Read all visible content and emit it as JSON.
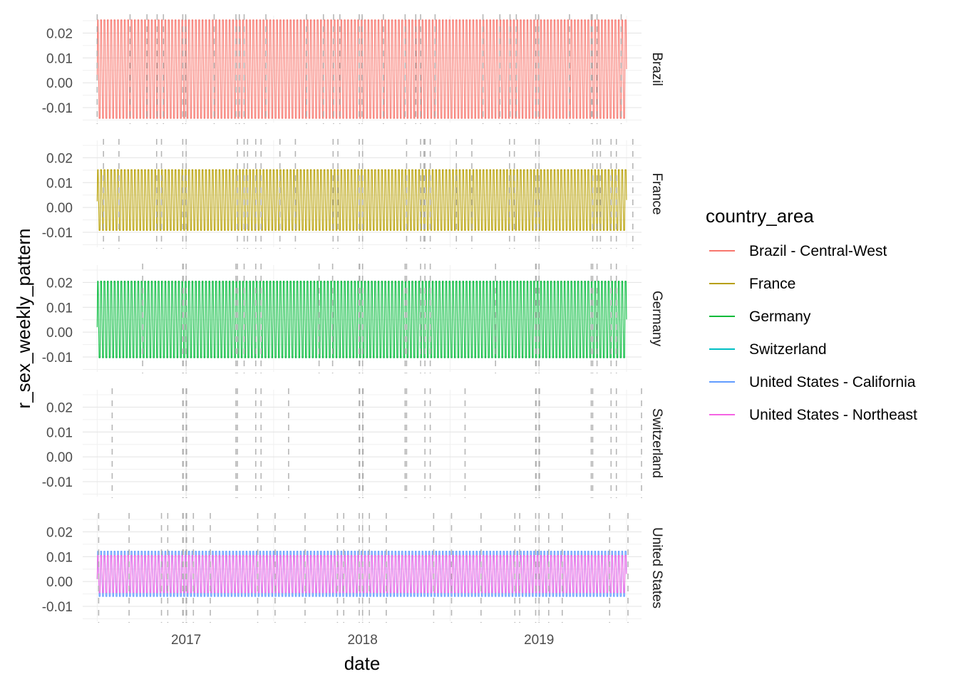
{
  "chart_data": {
    "type": "line",
    "xlabel": "date",
    "ylabel": "r_sex_weekly_pattern",
    "x_ticks": [
      "2017",
      "2018",
      "2019"
    ],
    "x_tick_dates": [
      "2017-01-01",
      "2018-01-01",
      "2019-01-01"
    ],
    "xlim": [
      "2016-06-01",
      "2019-08-01"
    ],
    "date_range": [
      "2016-07-01",
      "2019-07-01"
    ],
    "ylim": [
      -0.016,
      0.027
    ],
    "y_ticks": [
      -0.01,
      0.0,
      0.01,
      0.02
    ],
    "y_tick_labels": [
      "-0.01",
      "0.00",
      "0.01",
      "0.02"
    ],
    "facet_strip_position": "right",
    "grid": true,
    "weekly_oscillation": true,
    "legend": {
      "title": "country_area",
      "position": "right",
      "entries": [
        {
          "name": "Brazil - Central-West",
          "color": "#F8766D"
        },
        {
          "name": "France",
          "color": "#B79F00"
        },
        {
          "name": "Germany",
          "color": "#00BA38"
        },
        {
          "name": "Switzerland",
          "color": "#00BFC4"
        },
        {
          "name": "United States - California",
          "color": "#619CFF"
        },
        {
          "name": "United States - Northeast",
          "color": "#F564E3"
        }
      ]
    },
    "facets": [
      {
        "label": "Brazil",
        "series": [
          {
            "name": "Brazil - Central-West",
            "color": "#F8766D",
            "max": 0.0253,
            "min": -0.0143,
            "start": 0.001
          }
        ],
        "dashed_lines": [
          "2016-07-01",
          "2016-09-07",
          "2016-10-12",
          "2016-11-02",
          "2016-11-15",
          "2016-12-25",
          "2016-12-31",
          "2017-02-28",
          "2017-04-14",
          "2017-04-21",
          "2017-05-01",
          "2017-06-15",
          "2017-09-07",
          "2017-10-12",
          "2017-11-02",
          "2017-11-15",
          "2017-12-25",
          "2017-12-31",
          "2018-02-13",
          "2018-03-30",
          "2018-04-21",
          "2018-05-01",
          "2018-05-31",
          "2018-09-07",
          "2018-10-12",
          "2018-11-02",
          "2018-11-15",
          "2018-12-25",
          "2018-12-31",
          "2019-03-05",
          "2019-04-19",
          "2019-04-21",
          "2019-05-01",
          "2019-06-20"
        ]
      },
      {
        "label": "France",
        "series": [
          {
            "name": "France",
            "color": "#B79F00",
            "max": 0.0152,
            "min": -0.0092,
            "start": 0.0025
          }
        ],
        "dashed_lines": [
          "2016-05-16",
          "2016-07-14",
          "2016-08-15",
          "2016-11-01",
          "2016-11-11",
          "2016-12-25",
          "2017-01-01",
          "2017-04-17",
          "2017-05-01",
          "2017-05-08",
          "2017-05-25",
          "2017-06-05",
          "2017-07-14",
          "2017-08-15",
          "2017-11-01",
          "2017-11-11",
          "2017-12-25",
          "2018-01-01",
          "2018-04-02",
          "2018-05-01",
          "2018-05-08",
          "2018-05-10",
          "2018-05-21",
          "2018-07-14",
          "2018-08-15",
          "2018-11-01",
          "2018-11-11",
          "2018-12-25",
          "2019-01-01",
          "2019-04-22",
          "2019-05-01",
          "2019-05-08",
          "2019-05-30",
          "2019-06-10",
          "2019-07-14"
        ]
      },
      {
        "label": "Germany",
        "series": [
          {
            "name": "Germany",
            "color": "#00BA38",
            "max": 0.0205,
            "min": -0.0103,
            "start": 0.002
          }
        ],
        "dashed_lines": [
          "2016-10-03",
          "2016-12-25",
          "2016-12-26",
          "2017-01-01",
          "2017-04-14",
          "2017-04-17",
          "2017-05-01",
          "2017-05-25",
          "2017-06-05",
          "2017-10-03",
          "2017-10-31",
          "2017-12-25",
          "2017-12-26",
          "2018-01-01",
          "2018-03-30",
          "2018-04-02",
          "2018-05-01",
          "2018-05-10",
          "2018-05-21",
          "2018-10-03",
          "2018-12-25",
          "2018-12-26",
          "2019-01-01",
          "2019-04-19",
          "2019-04-22",
          "2019-05-01",
          "2019-05-30",
          "2019-06-10"
        ]
      },
      {
        "label": "Switzerland",
        "series": [],
        "dashed_lines": [
          "2016-08-01",
          "2016-12-25",
          "2016-12-26",
          "2017-01-01",
          "2017-01-02",
          "2017-04-14",
          "2017-04-17",
          "2017-05-25",
          "2017-06-05",
          "2017-08-01",
          "2017-12-25",
          "2017-12-26",
          "2018-01-01",
          "2018-01-02",
          "2018-03-30",
          "2018-04-02",
          "2018-05-10",
          "2018-05-21",
          "2018-08-01",
          "2018-12-25",
          "2018-12-26",
          "2019-01-01",
          "2019-01-02",
          "2019-04-19",
          "2019-04-22",
          "2019-05-30",
          "2019-06-10",
          "2019-08-01"
        ]
      },
      {
        "label": "United States",
        "series": [
          {
            "name": "United States - California",
            "color": "#619CFF",
            "max": 0.0122,
            "min": -0.006,
            "start": 0.001
          },
          {
            "name": "United States - Northeast",
            "color": "#F564E3",
            "max": 0.0105,
            "min": -0.0045,
            "start": 0.001
          }
        ],
        "dashed_lines": [
          "2016-07-04",
          "2016-09-05",
          "2016-11-11",
          "2016-11-24",
          "2016-12-25",
          "2016-12-26",
          "2017-01-01",
          "2017-01-02",
          "2017-01-16",
          "2017-02-20",
          "2017-05-29",
          "2017-07-04",
          "2017-09-04",
          "2017-11-10",
          "2017-11-23",
          "2017-12-25",
          "2018-01-01",
          "2018-01-15",
          "2018-02-19",
          "2018-05-28",
          "2018-07-04",
          "2018-09-03",
          "2018-11-12",
          "2018-11-22",
          "2018-12-25",
          "2019-01-01",
          "2019-01-21",
          "2019-02-18",
          "2019-05-27",
          "2019-07-04"
        ]
      }
    ]
  }
}
